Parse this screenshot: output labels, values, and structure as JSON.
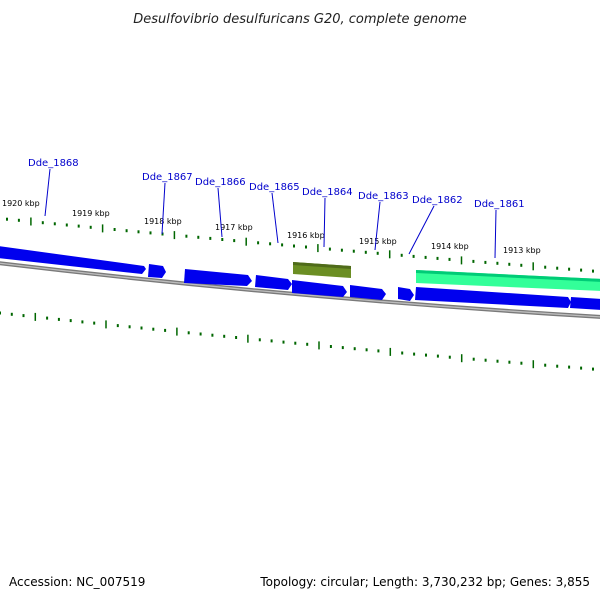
{
  "title": "Desulfovibrio desulfuricans G20, complete genome",
  "footer": {
    "accession": "Accession: NC_007519",
    "summary": "Topology: circular; Length: 3,730,232 bp; Genes: 3,855"
  },
  "colors": {
    "gene_default": "#0000ee",
    "gene_selected": "#6b8e23",
    "gene_highlight": "#33ff99",
    "backbone": "#777777",
    "tick": "#006600",
    "label": "#0000cc",
    "callout": "#0000cc"
  },
  "kbp_labels": [
    {
      "text": "1920 kbp"
    },
    {
      "text": "1919 kbp"
    },
    {
      "text": "1918 kbp"
    },
    {
      "text": "1917 kbp"
    },
    {
      "text": "1916 kbp"
    },
    {
      "text": "1915 kbp"
    },
    {
      "text": "1914 kbp"
    },
    {
      "text": "1913 kbp"
    }
  ],
  "gene_labels": [
    {
      "text": "Dde_1868"
    },
    {
      "text": "Dde_1867"
    },
    {
      "text": "Dde_1866"
    },
    {
      "text": "Dde_1865"
    },
    {
      "text": "Dde_1864"
    },
    {
      "text": "Dde_1863"
    },
    {
      "text": "Dde_1862"
    },
    {
      "text": "Dde_1861"
    }
  ]
}
